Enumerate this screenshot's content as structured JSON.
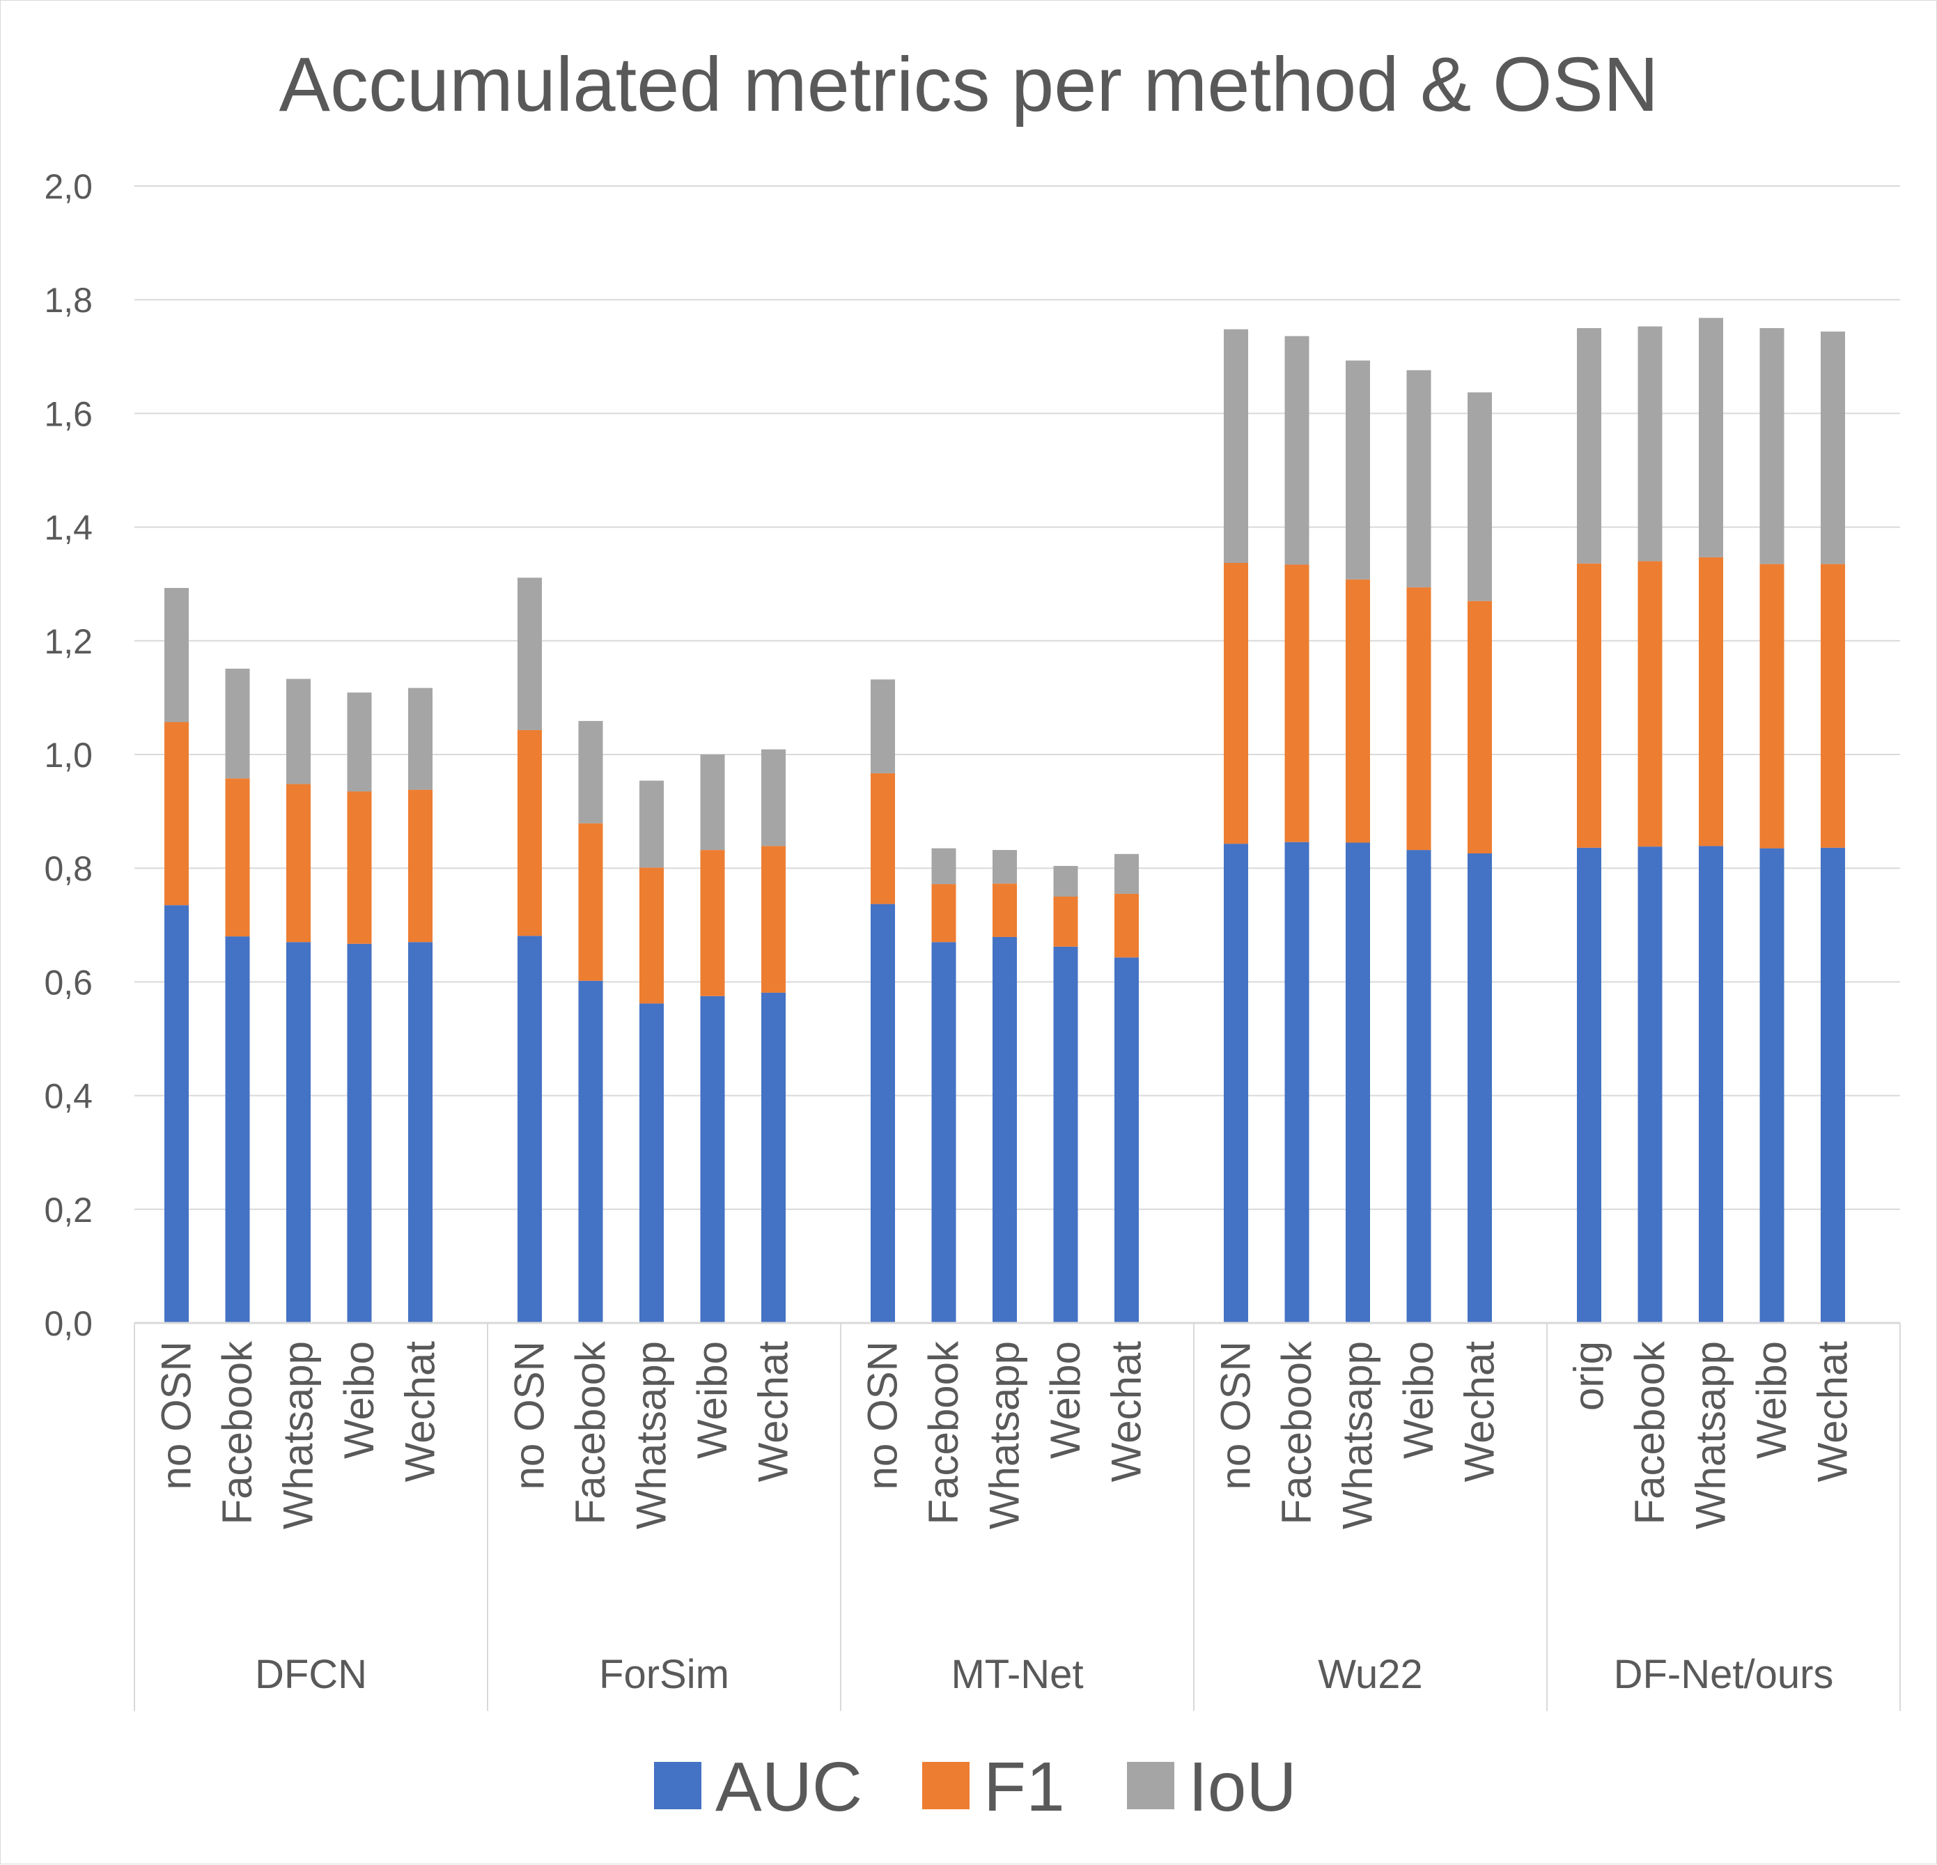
{
  "chart_data": {
    "type": "bar",
    "stacked": true,
    "title": "Accumulated metrics per method & OSN",
    "xlabel": "",
    "ylabel": "",
    "ylim": [
      0,
      2.0
    ],
    "yticks": [
      "0,0",
      "0,2",
      "0,4",
      "0,6",
      "0,8",
      "1,0",
      "1,2",
      "1,4",
      "1,6",
      "1,8",
      "2,0"
    ],
    "grid": true,
    "legend_position": "bottom",
    "groups": [
      {
        "name": "DFCN",
        "categories": [
          "no OSN",
          "Facebook",
          "Whatsapp",
          "Weibo",
          "Wechat"
        ]
      },
      {
        "name": "ForSim",
        "categories": [
          "no OSN",
          "Facebook",
          "Whatsapp",
          "Weibo",
          "Wechat"
        ]
      },
      {
        "name": "MT-Net",
        "categories": [
          "no OSN",
          "Facebook",
          "Whatsapp",
          "Weibo",
          "Wechat"
        ]
      },
      {
        "name": "Wu22",
        "categories": [
          "no OSN",
          "Facebook",
          "Whatsapp",
          "Weibo",
          "Wechat"
        ]
      },
      {
        "name": "DF-Net/ours",
        "categories": [
          "orig",
          "Facebook",
          "Whatsapp",
          "Weibo",
          "Wechat"
        ]
      }
    ],
    "series": [
      {
        "name": "AUC",
        "color": "#4472c4",
        "values": [
          0.735,
          0.68,
          0.67,
          0.667,
          0.67,
          0.681,
          0.602,
          0.562,
          0.575,
          0.581,
          0.737,
          0.67,
          0.679,
          0.662,
          0.643,
          0.843,
          0.846,
          0.845,
          0.832,
          0.826,
          0.836,
          0.838,
          0.839,
          0.835,
          0.836
        ]
      },
      {
        "name": "F1",
        "color": "#ed7d31",
        "values": [
          0.322,
          0.278,
          0.278,
          0.268,
          0.268,
          0.362,
          0.277,
          0.239,
          0.257,
          0.258,
          0.23,
          0.102,
          0.094,
          0.088,
          0.112,
          0.494,
          0.488,
          0.463,
          0.462,
          0.444,
          0.5,
          0.502,
          0.508,
          0.5,
          0.499
        ]
      },
      {
        "name": "IoU",
        "color": "#a5a5a5",
        "values": [
          0.236,
          0.193,
          0.185,
          0.174,
          0.179,
          0.268,
          0.18,
          0.153,
          0.168,
          0.17,
          0.165,
          0.063,
          0.059,
          0.054,
          0.07,
          0.411,
          0.402,
          0.385,
          0.382,
          0.367,
          0.414,
          0.413,
          0.421,
          0.415,
          0.409
        ]
      }
    ]
  }
}
